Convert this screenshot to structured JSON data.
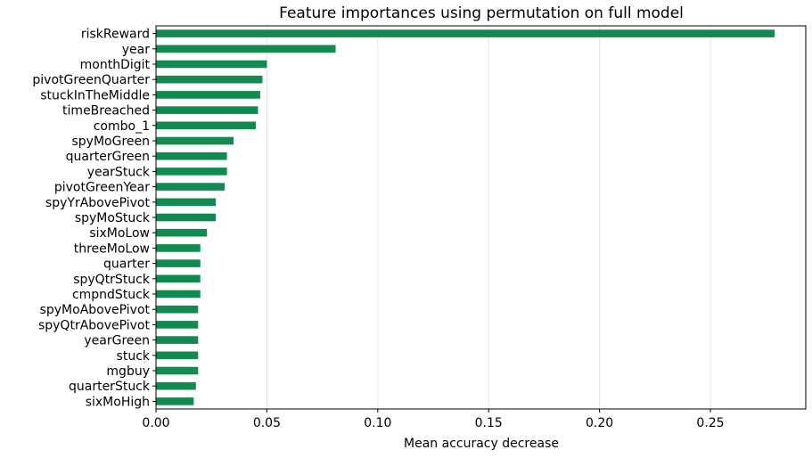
{
  "chart_data": {
    "type": "bar",
    "orientation": "horizontal",
    "title": "Feature importances using permutation on full model",
    "xlabel": "Mean accuracy decrease",
    "ylabel": "",
    "xlim": [
      0,
      0.293
    ],
    "xticks": [
      0.0,
      0.05,
      0.1,
      0.15,
      0.2,
      0.25
    ],
    "xtick_labels": [
      "0.00",
      "0.05",
      "0.10",
      "0.15",
      "0.20",
      "0.25"
    ],
    "grid": true,
    "bar_color": "#128a4f",
    "categories": [
      "riskReward",
      "year",
      "monthDigit",
      "pivotGreenQuarter",
      "stuckInTheMiddle",
      "timeBreached",
      "combo_1",
      "spyMoGreen",
      "quarterGreen",
      "yearStuck",
      "pivotGreenYear",
      "spyYrAbovePivot",
      "spyMoStuck",
      "sixMoLow",
      "threeMoLow",
      "quarter",
      "spyQtrStuck",
      "cmpndStuck",
      "spyMoAbovePivot",
      "spyQtrAbovePivot",
      "yearGreen",
      "stuck",
      "mgbuy",
      "quarterStuck",
      "sixMoHigh"
    ],
    "values": [
      0.279,
      0.081,
      0.05,
      0.048,
      0.047,
      0.046,
      0.045,
      0.035,
      0.032,
      0.032,
      0.031,
      0.027,
      0.027,
      0.023,
      0.02,
      0.02,
      0.02,
      0.02,
      0.019,
      0.019,
      0.019,
      0.019,
      0.019,
      0.018,
      0.017
    ]
  }
}
